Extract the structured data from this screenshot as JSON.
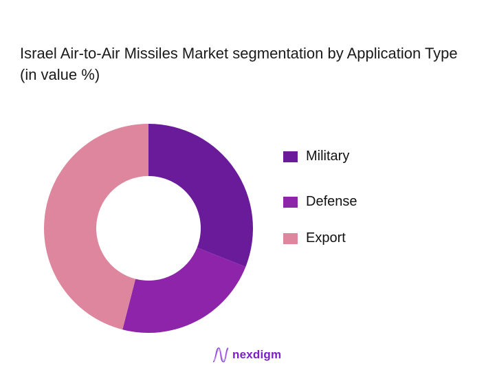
{
  "title": "Israel Air-to-Air Missiles Market segmentation by Application Type (in value %)",
  "chart_data": {
    "type": "pie",
    "subtype": "donut",
    "title": "Israel Air-to-Air Missiles Market segmentation by Application Type (in value %)",
    "categories": [
      "Military",
      "Defense",
      "Export"
    ],
    "values": [
      31,
      23,
      46
    ],
    "colors": [
      "#6a1b9a",
      "#8e24aa",
      "#dd869e"
    ],
    "legend_position": "right",
    "data_labels": false
  },
  "legend": {
    "items": [
      {
        "label": "Military",
        "color": "#6a1b9a"
      },
      {
        "label": "Defense",
        "color": "#8e24aa"
      },
      {
        "label": "Export",
        "color": "#dd869e"
      }
    ]
  },
  "brand": {
    "name": "nexdigm",
    "icon": "wave-logo-icon"
  }
}
